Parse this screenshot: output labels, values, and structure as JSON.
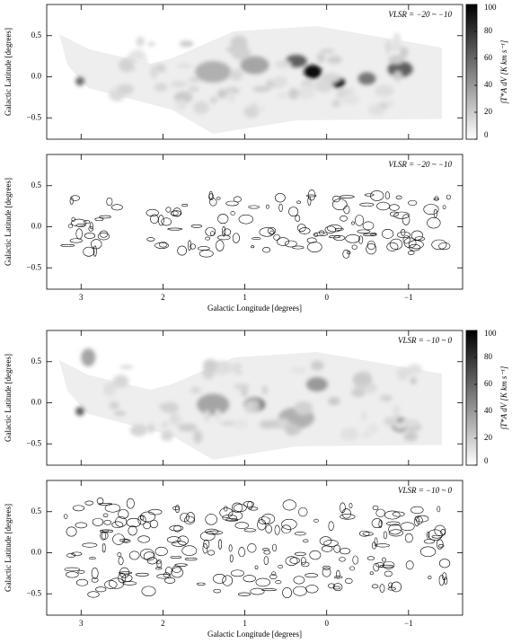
{
  "chart_data": [
    {
      "type": "image",
      "annotation": "VLSR = −20 ~ −10",
      "ylabel": "Galactic Latitude [degrees]",
      "xlim": [
        3.42,
        -1.66
      ],
      "xticks": [
        3,
        2,
        1,
        0,
        -1
      ],
      "ylim": [
        -0.76,
        0.88
      ],
      "yticks": [
        {
          "value": 0.5,
          "label": "0.5"
        },
        {
          "value": 0,
          "label": "0.0"
        },
        {
          "value": -0.5,
          "label": "−0.5"
        }
      ],
      "cmap": "gray_r",
      "colorbar": {
        "clim": [
          0,
          100
        ],
        "ticks": [
          0,
          20,
          40,
          60,
          80,
          100
        ],
        "label": "∫T*A dV [K km s⁻¹]"
      }
    },
    {
      "type": "contour",
      "annotation": "VLSR = −20 ~ −10",
      "ylabel": "Galactic Latitude [degrees]",
      "xlabel": "Galactic Longitude [degrees]",
      "xlim": [
        3.42,
        -1.66
      ],
      "xticks": [
        3,
        2,
        1,
        0,
        {
          "value": -1,
          "label": "−1"
        }
      ],
      "ylim": [
        -0.76,
        0.88
      ],
      "yticks": [
        {
          "value": 0.5,
          "label": "0.5"
        },
        {
          "value": 0,
          "label": "0.0"
        },
        {
          "value": -0.5,
          "label": "−0.5"
        }
      ]
    },
    {
      "type": "image",
      "annotation": "VLSR = −10 ~ 0",
      "ylabel": "Galactic Latitude [degrees]",
      "xlim": [
        3.42,
        -1.66
      ],
      "xticks": [
        3,
        2,
        1,
        0,
        -1
      ],
      "ylim": [
        -0.76,
        0.88
      ],
      "yticks": [
        {
          "value": 0.5,
          "label": "0.5"
        },
        {
          "value": 0,
          "label": "0.0"
        },
        {
          "value": -0.5,
          "label": "−0.5"
        }
      ],
      "cmap": "gray_r",
      "colorbar": {
        "clim": [
          0,
          100
        ],
        "ticks": [
          0,
          20,
          40,
          60,
          80,
          100
        ],
        "label": "∫T*A dV [K km s⁻¹]"
      }
    },
    {
      "type": "contour",
      "annotation": "VLSR = −10 ~ 0",
      "ylabel": "Galactic Latitude [degrees]",
      "xlabel": "Galactic Longitude [degrees]",
      "xlim": [
        3.42,
        -1.66
      ],
      "xticks": [
        3,
        2,
        1,
        0,
        {
          "value": -1,
          "label": "−1"
        }
      ],
      "ylim": [
        -0.76,
        0.88
      ],
      "yticks": [
        {
          "value": 0.5,
          "label": "0.5"
        },
        {
          "value": 0,
          "label": "0.0"
        },
        {
          "value": -0.5,
          "label": "−0.5"
        }
      ]
    }
  ]
}
